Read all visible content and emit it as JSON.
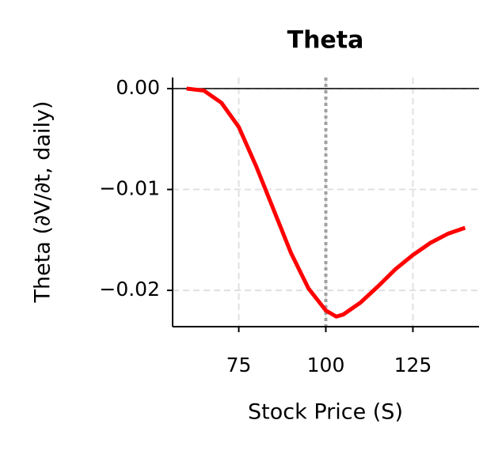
{
  "chart_data": {
    "type": "line",
    "title": "Theta",
    "x_label": "Stock Price (S)",
    "y_label": "Theta (∂V/∂t, daily)",
    "x": [
      60,
      65,
      70,
      75,
      80,
      85,
      90,
      95,
      100,
      103,
      105,
      110,
      115,
      120,
      125,
      130,
      135,
      140
    ],
    "series": [
      {
        "name": "Theta",
        "color": "#ff0000",
        "values": [
          0.0,
          -0.0002,
          -0.0014,
          -0.0038,
          -0.0077,
          -0.012,
          -0.0163,
          -0.0198,
          -0.022,
          -0.0226,
          -0.0224,
          -0.0212,
          -0.0196,
          -0.0179,
          -0.0165,
          -0.0153,
          -0.0144,
          -0.0138
        ]
      }
    ],
    "xlim": [
      56,
      144
    ],
    "ylim": [
      -0.0236,
      0.0011
    ],
    "xticks": [
      75,
      100,
      125
    ],
    "yticks": [
      {
        "value": 0,
        "label": "0.00"
      },
      {
        "value": -0.01,
        "label": "−0.01"
      },
      {
        "value": -0.02,
        "label": "−0.02"
      }
    ],
    "vline": {
      "x": 100,
      "color": "#a0a0a0"
    },
    "hline": {
      "y": 0,
      "color": "#000000"
    },
    "grid": true
  }
}
